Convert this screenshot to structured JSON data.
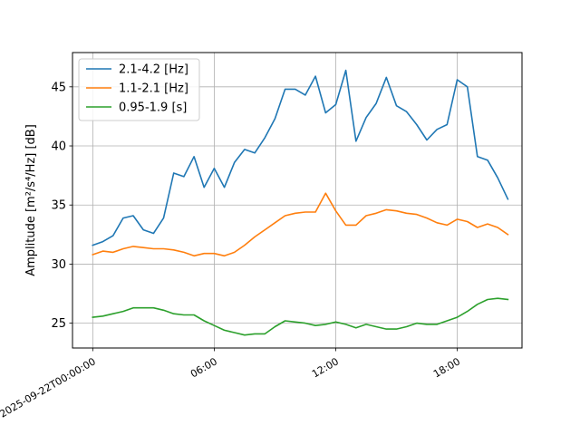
{
  "chart_data": {
    "type": "line",
    "x_axis": {
      "type": "datetime",
      "start": "2025-09-22T00:00:00",
      "range_hours": [
        -1.0,
        21.2
      ],
      "ticks": [
        {
          "hour": 0,
          "label": "2025-09-22T00:00:00"
        },
        {
          "hour": 6,
          "label": "06:00"
        },
        {
          "hour": 12,
          "label": "12:00"
        },
        {
          "hour": 18,
          "label": "18:00"
        }
      ]
    },
    "y_axis": {
      "label_prefix": "Amplitude ",
      "label_unit_display": "[m²/s⁴/Hz] [dB]",
      "range": [
        22.9,
        47.9
      ],
      "ticks": [
        25,
        30,
        35,
        40,
        45
      ]
    },
    "grid": true,
    "legend_position": "top-left",
    "x_hours": [
      0,
      0.5,
      1,
      1.5,
      2,
      2.5,
      3,
      3.5,
      4,
      4.5,
      5,
      5.5,
      6,
      6.5,
      7,
      7.5,
      8,
      8.5,
      9,
      9.5,
      10,
      10.5,
      11,
      11.5,
      12,
      12.5,
      13,
      13.5,
      14,
      14.5,
      15,
      15.5,
      16,
      16.5,
      17,
      17.5,
      18,
      18.5,
      19,
      19.5,
      20,
      20.5
    ],
    "series": [
      {
        "name": "2.1-4.2 [Hz]",
        "color": "#1f77b4",
        "values": [
          31.6,
          31.9,
          32.4,
          33.9,
          34.1,
          32.9,
          32.6,
          33.9,
          37.7,
          37.4,
          39.1,
          36.5,
          38.1,
          36.5,
          38.6,
          39.7,
          39.4,
          40.7,
          42.3,
          44.8,
          44.8,
          44.3,
          45.9,
          42.8,
          43.5,
          46.4,
          40.4,
          42.4,
          43.6,
          45.8,
          43.4,
          42.9,
          41.8,
          40.5,
          41.4,
          41.8,
          45.6,
          45.0,
          39.1,
          38.8,
          37.3,
          35.5
        ]
      },
      {
        "name": "1.1-2.1 [Hz]",
        "color": "#ff7f0e",
        "values": [
          30.8,
          31.1,
          31.0,
          31.3,
          31.5,
          31.4,
          31.3,
          31.3,
          31.2,
          31.0,
          30.7,
          30.9,
          30.9,
          30.7,
          31.0,
          31.6,
          32.3,
          32.9,
          33.5,
          34.1,
          34.3,
          34.4,
          34.4,
          36.0,
          34.5,
          33.3,
          33.3,
          34.1,
          34.3,
          34.6,
          34.5,
          34.3,
          34.2,
          33.9,
          33.5,
          33.3,
          33.8,
          33.6,
          33.1,
          33.4,
          33.1,
          32.5
        ]
      },
      {
        "name": "0.95-1.9 [s]",
        "color": "#2ca02c",
        "values": [
          25.5,
          25.6,
          25.8,
          26.0,
          26.3,
          26.3,
          26.3,
          26.1,
          25.8,
          25.7,
          25.7,
          25.2,
          24.8,
          24.4,
          24.2,
          24.0,
          24.1,
          24.1,
          24.7,
          25.2,
          25.1,
          25.0,
          24.8,
          24.9,
          25.1,
          24.9,
          24.6,
          24.9,
          24.7,
          24.5,
          24.5,
          24.7,
          25.0,
          24.9,
          24.9,
          25.2,
          25.5,
          26.0,
          26.6,
          27.0,
          27.1,
          27.0
        ]
      }
    ]
  }
}
